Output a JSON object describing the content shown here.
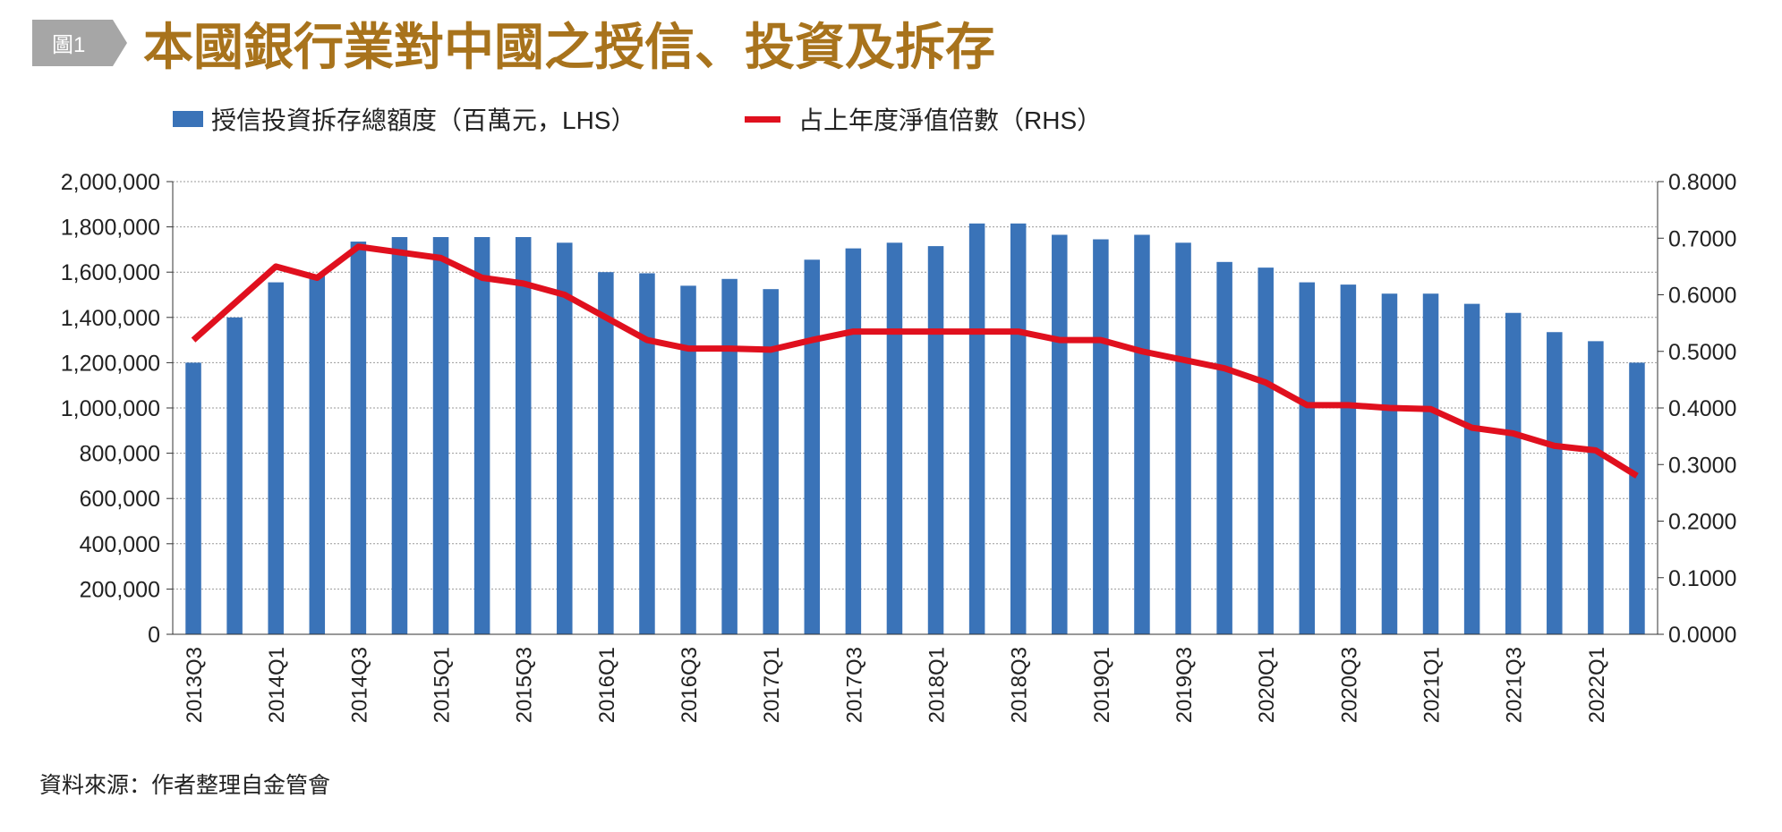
{
  "badge": "圖1",
  "title": "本國銀行業對中國之授信、投資及拆存",
  "source": "資料來源：作者整理自金管會",
  "colors": {
    "bar": "#3a73b8",
    "line": "#e0101e",
    "title": "#a8731c",
    "badge": "#a6a6a6"
  },
  "chart_data": {
    "type": "bar+line",
    "legend_position": "top",
    "grid": true,
    "categories": [
      "2013Q3",
      "2013Q4",
      "2014Q1",
      "2014Q2",
      "2014Q3",
      "2014Q4",
      "2015Q1",
      "2015Q2",
      "2015Q3",
      "2015Q4",
      "2016Q1",
      "2016Q2",
      "2016Q3",
      "2016Q4",
      "2017Q1",
      "2017Q2",
      "2017Q3",
      "2017Q4",
      "2018Q1",
      "2018Q2",
      "2018Q3",
      "2018Q4",
      "2019Q1",
      "2019Q2",
      "2019Q3",
      "2019Q4",
      "2020Q1",
      "2020Q2",
      "2020Q3",
      "2020Q4",
      "2021Q1",
      "2021Q2",
      "2021Q3",
      "2021Q4",
      "2022Q1",
      "2022Q2"
    ],
    "tick_labels": [
      "2013Q3",
      "2014Q1",
      "2014Q3",
      "2015Q1",
      "2015Q3",
      "2016Q1",
      "2016Q3",
      "2017Q1",
      "2017Q3",
      "2018Q1",
      "2018Q3",
      "2019Q1",
      "2019Q3",
      "2020Q1",
      "2020Q3",
      "2021Q1",
      "2021Q3",
      "2022Q1"
    ],
    "series": [
      {
        "name": "授信投資拆存總額度（百萬元，LHS）",
        "type": "bar",
        "axis": "left",
        "values": [
          1200000,
          1400000,
          1555000,
          1585000,
          1735000,
          1755000,
          1755000,
          1755000,
          1755000,
          1730000,
          1600000,
          1595000,
          1540000,
          1570000,
          1525000,
          1655000,
          1705000,
          1730000,
          1715000,
          1815000,
          1815000,
          1765000,
          1745000,
          1765000,
          1730000,
          1645000,
          1620000,
          1555000,
          1545000,
          1505000,
          1505000,
          1460000,
          1420000,
          1335000,
          1295000,
          1200000
        ]
      },
      {
        "name": "占上年度淨值倍數（RHS）",
        "type": "line",
        "axis": "right",
        "values": [
          0.52,
          0.585,
          0.65,
          0.63,
          0.685,
          0.675,
          0.665,
          0.63,
          0.62,
          0.6,
          0.56,
          0.52,
          0.505,
          0.505,
          0.503,
          0.52,
          0.535,
          0.535,
          0.535,
          0.535,
          0.535,
          0.52,
          0.52,
          0.5,
          0.485,
          0.47,
          0.445,
          0.405,
          0.405,
          0.4,
          0.398,
          0.365,
          0.355,
          0.333,
          0.325,
          0.28
        ]
      }
    ],
    "y_left": {
      "range": [
        0,
        2000000
      ],
      "ticks": [
        "0",
        "200,000",
        "400,000",
        "600,000",
        "800,000",
        "1,000,000",
        "1,200,000",
        "1,400,000",
        "1,600,000",
        "1,800,000",
        "2,000,000"
      ]
    },
    "y_right": {
      "range": [
        0,
        0.8
      ],
      "ticks": [
        "0.0000",
        "0.1000",
        "0.2000",
        "0.3000",
        "0.4000",
        "0.5000",
        "0.6000",
        "0.7000",
        "0.8000"
      ]
    }
  }
}
